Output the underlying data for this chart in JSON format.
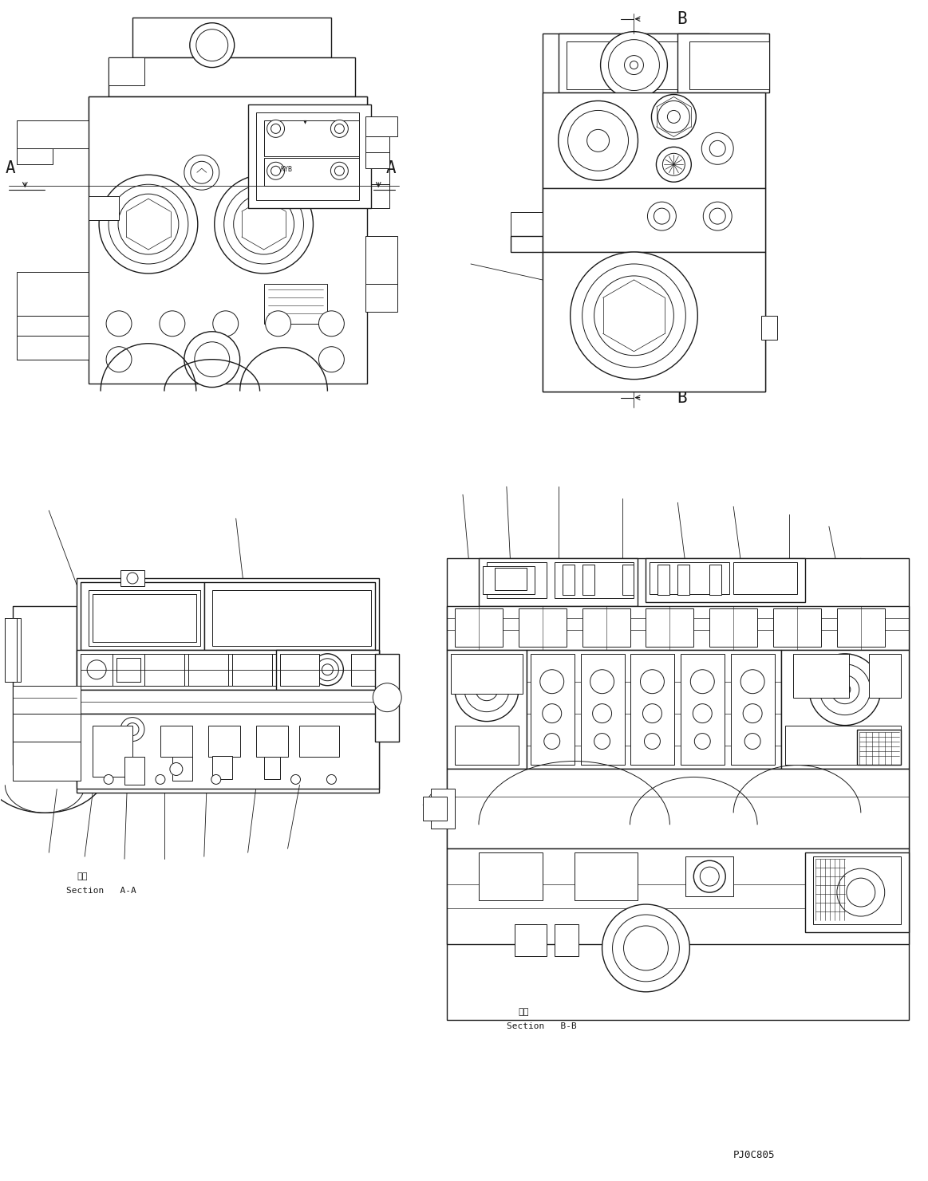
{
  "bg_color": "#ffffff",
  "line_color": "#1a1a1a",
  "lw": 0.7,
  "lw2": 1.0,
  "lw3": 1.3,
  "fig_width": 11.63,
  "fig_height": 14.81,
  "label_A": "A",
  "label_B": "B",
  "section_aa_cjk": "断面",
  "section_aa_en": "Section   A-A",
  "section_bb_cjk": "断面",
  "section_bb_en": "Section   B-B",
  "part_number": "PJ0C805"
}
